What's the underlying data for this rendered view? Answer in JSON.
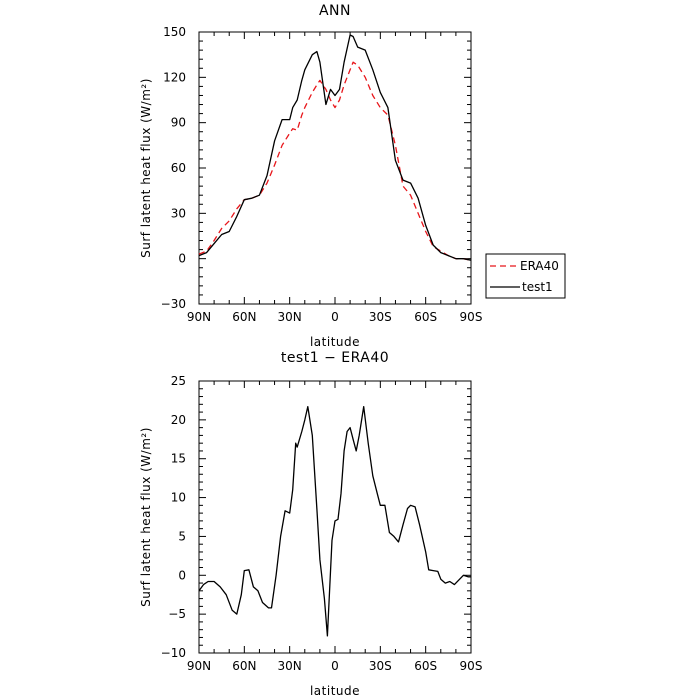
{
  "chart_data": [
    {
      "type": "line",
      "title": "ANN",
      "xlabel": "latitude",
      "ylabel": "Surf latent heat flux (W/m²)",
      "xlim": [
        90,
        -90
      ],
      "ylim": [
        -30,
        150
      ],
      "x_ticks": [
        90,
        60,
        30,
        0,
        -30,
        -60,
        -90
      ],
      "x_tick_labels": [
        "90N",
        "60N",
        "30N",
        "0",
        "30S",
        "60S",
        "90S"
      ],
      "y_ticks": [
        -30,
        0,
        30,
        60,
        90,
        120,
        150
      ],
      "y_tick_labels": [
        "−30",
        "0",
        "30",
        "60",
        "90",
        "120",
        "150"
      ],
      "legend_position": "right, outside plot",
      "series": [
        {
          "name": "ERA40",
          "color": "#e8161b",
          "dash": "dashed",
          "x": [
            90,
            85,
            80,
            75,
            70,
            65,
            60,
            55,
            50,
            45,
            40,
            35,
            30,
            28,
            25,
            22,
            20,
            15,
            12,
            10,
            6,
            3,
            0,
            -3,
            -6,
            -10,
            -12,
            -15,
            -20,
            -25,
            -30,
            -35,
            -40,
            -45,
            -50,
            -55,
            -60,
            -65,
            -70,
            -75,
            -80,
            -85,
            -90
          ],
          "y": [
            3,
            5,
            12,
            20,
            25,
            33,
            39,
            40,
            42,
            50,
            62,
            75,
            83,
            86,
            85,
            95,
            100,
            110,
            115,
            118,
            112,
            105,
            100,
            105,
            115,
            125,
            130,
            128,
            120,
            108,
            100,
            95,
            75,
            48,
            42,
            30,
            18,
            8,
            5,
            2,
            0,
            0,
            -1
          ]
        },
        {
          "name": "test1",
          "color": "#000000",
          "dash": "solid",
          "x": [
            90,
            85,
            80,
            75,
            70,
            65,
            60,
            55,
            50,
            45,
            40,
            35,
            30,
            28,
            25,
            22,
            20,
            15,
            12,
            10,
            6,
            3,
            0,
            -3,
            -6,
            -10,
            -12,
            -15,
            -20,
            -25,
            -30,
            -35,
            -40,
            -45,
            -50,
            -55,
            -60,
            -65,
            -70,
            -75,
            -80,
            -85,
            -90
          ],
          "y": [
            2,
            4,
            10,
            16,
            18,
            28,
            39,
            40,
            42,
            55,
            78,
            92,
            92,
            100,
            105,
            118,
            125,
            135,
            137,
            130,
            102,
            112,
            108,
            112,
            130,
            148,
            147,
            140,
            138,
            125,
            110,
            100,
            65,
            52,
            50,
            40,
            22,
            9,
            4,
            2,
            0,
            0,
            -1
          ]
        }
      ]
    },
    {
      "type": "line",
      "title": "test1 − ERA40",
      "xlabel": "latitude",
      "ylabel": "Surf latent heat flux (W/m²)",
      "xlim": [
        90,
        -90
      ],
      "ylim": [
        -10,
        25
      ],
      "x_ticks": [
        90,
        60,
        30,
        0,
        -30,
        -60,
        -90
      ],
      "x_tick_labels": [
        "90N",
        "60N",
        "30N",
        "0",
        "30S",
        "60S",
        "90S"
      ],
      "y_ticks": [
        -10,
        -5,
        0,
        5,
        10,
        15,
        20,
        25
      ],
      "y_tick_labels": [
        "−10",
        "−5",
        "0",
        "5",
        "10",
        "15",
        "20",
        "25"
      ],
      "series": [
        {
          "color": "#000000",
          "dash": "solid",
          "x": [
            90,
            87,
            84,
            80,
            76,
            72,
            68,
            65,
            62,
            60,
            57,
            54,
            51,
            48,
            44,
            42,
            39,
            36,
            33,
            30,
            28,
            26,
            25,
            22,
            20,
            18,
            15,
            12,
            10,
            7,
            5,
            2,
            0,
            -2,
            -4,
            -6,
            -8,
            -10,
            -12,
            -14,
            -16,
            -19,
            -22,
            -25,
            -28,
            -30,
            -33,
            -36,
            -39,
            -42,
            -45,
            -48,
            -50,
            -53,
            -56,
            -60,
            -62,
            -65,
            -68,
            -70,
            -73,
            -76,
            -79,
            -82,
            -85,
            -88,
            -90
          ],
          "y": [
            -2,
            -1.2,
            -0.8,
            -0.8,
            -1.5,
            -2.5,
            -4.5,
            -5,
            -2.5,
            0.6,
            0.7,
            -1.5,
            -2,
            -3.5,
            -4.2,
            -4.2,
            0,
            5,
            8.3,
            8,
            11,
            17,
            16.5,
            18.5,
            20,
            21.7,
            18,
            8.5,
            2,
            -3,
            -7.8,
            4.5,
            7,
            7.2,
            10.5,
            16,
            18.5,
            19,
            17.5,
            16,
            18,
            21.7,
            17,
            12.8,
            10.5,
            9,
            9,
            5.5,
            5,
            4.3,
            6.5,
            8.6,
            9,
            8.8,
            6.5,
            3,
            0.7,
            0.6,
            0.5,
            -0.5,
            -1,
            -0.8,
            -1.2,
            -0.6,
            0,
            -0.2,
            -0.2
          ]
        }
      ]
    }
  ]
}
